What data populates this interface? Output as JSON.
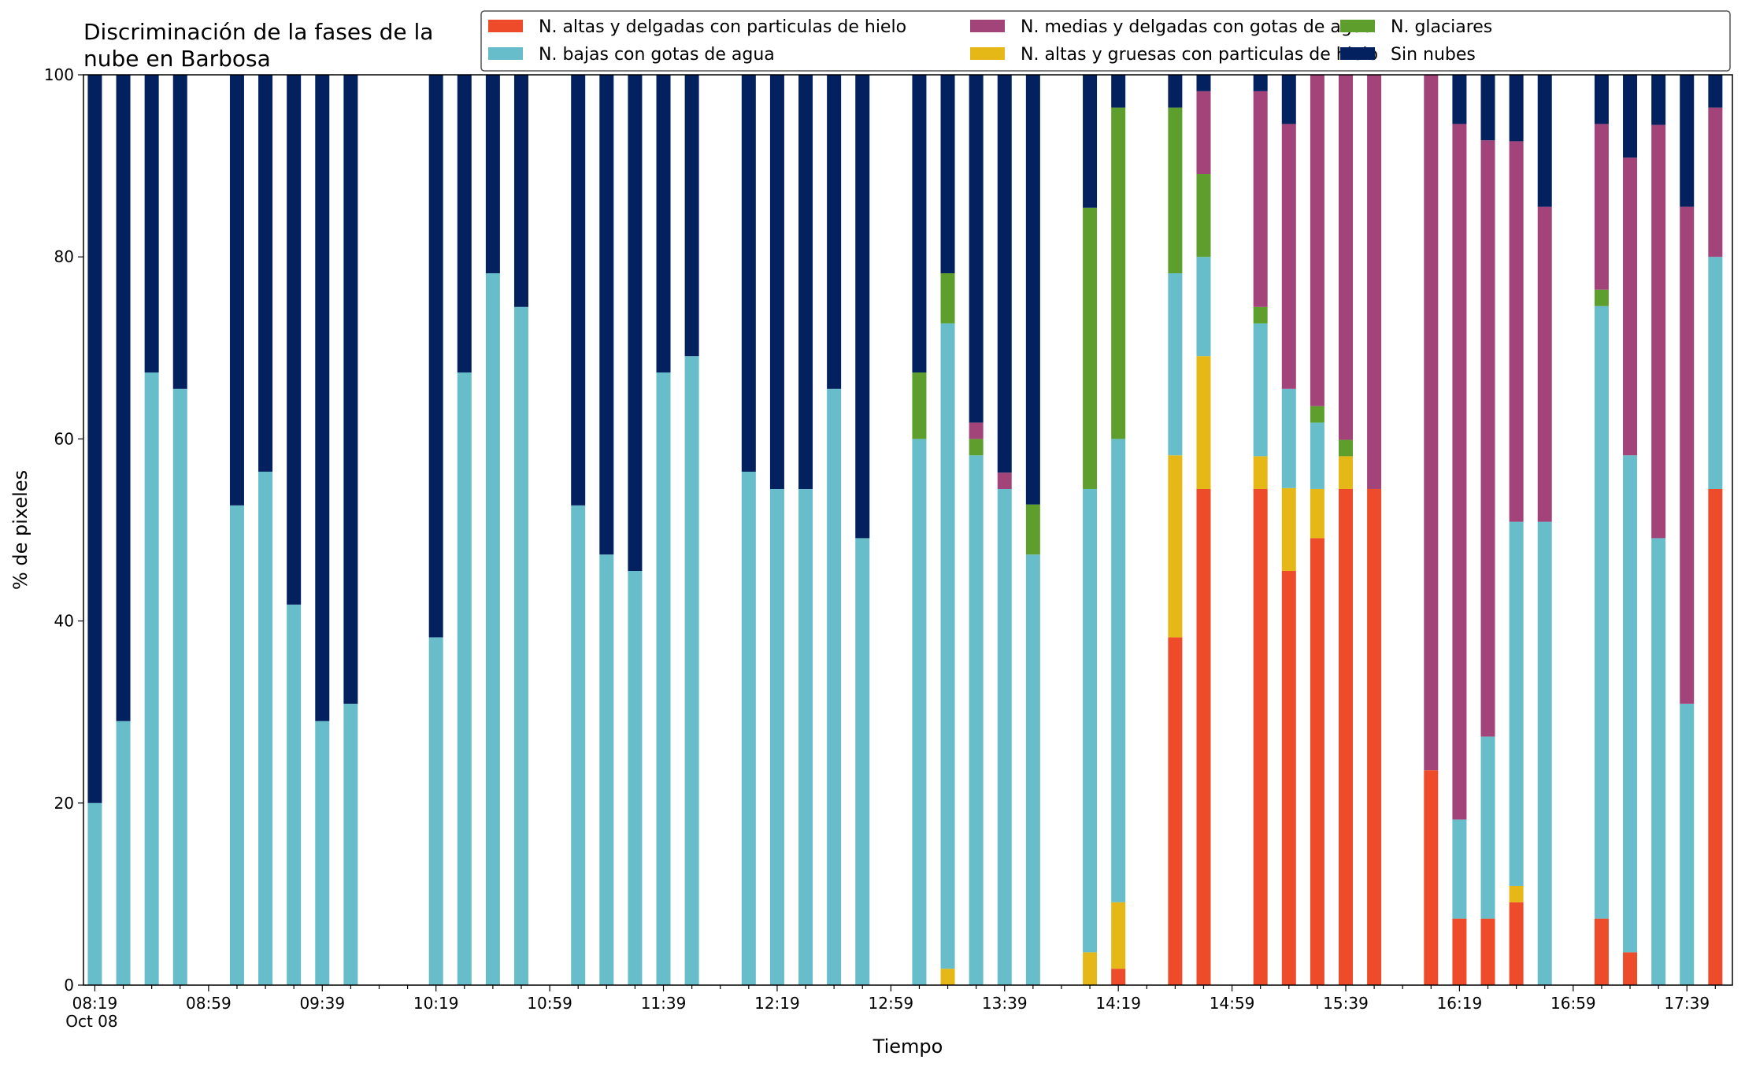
{
  "chart_data": {
    "type": "bar",
    "stacked": true,
    "title": "Discriminación de la fases de la\nnube en Barbosa",
    "xlabel": "Tiempo",
    "ylabel": "% de pixeles",
    "ylim": [
      0,
      100
    ],
    "yticks": [
      0,
      20,
      40,
      60,
      80,
      100
    ],
    "xticks": [
      {
        "time": "08:19",
        "label": "08:19",
        "sublabel": "Oct 08"
      },
      {
        "time": "08:59",
        "label": "08:59"
      },
      {
        "time": "09:39",
        "label": "09:39"
      },
      {
        "time": "10:19",
        "label": "10:19"
      },
      {
        "time": "10:59",
        "label": "10:59"
      },
      {
        "time": "11:39",
        "label": "11:39"
      },
      {
        "time": "12:19",
        "label": "12:19"
      },
      {
        "time": "12:59",
        "label": "12:59"
      },
      {
        "time": "13:39",
        "label": "13:39"
      },
      {
        "time": "14:19",
        "label": "14:19"
      },
      {
        "time": "14:59",
        "label": "14:59"
      },
      {
        "time": "15:39",
        "label": "15:39"
      },
      {
        "time": "16:19",
        "label": "16:19"
      },
      {
        "time": "16:59",
        "label": "16:59"
      },
      {
        "time": "17:39",
        "label": "17:39"
      }
    ],
    "minor_tick_interval_minutes": 10,
    "x_range": [
      "08:15",
      "17:55"
    ],
    "grid": false,
    "legend_position": "top-right",
    "series": [
      {
        "name": "N. altas y delgadas con particulas de hielo",
        "color": "#EE4B2B"
      },
      {
        "name": "N. altas y gruesas con particulas de hielo",
        "color": "#E6B817"
      },
      {
        "name": "N. bajas con gotas de agua",
        "color": "#67BDC9"
      },
      {
        "name": "N. glaciares",
        "color": "#5E9E2D"
      },
      {
        "name": "N. medias y delgadas con gotas de agua",
        "color": "#A2437A"
      },
      {
        "name": "Sin nubes",
        "color": "#03205F"
      }
    ],
    "legend_order": [
      0,
      2,
      4,
      1,
      3,
      5
    ],
    "bars": [
      {
        "time": "08:19",
        "values": [
          0,
          0,
          20,
          0,
          0,
          80
        ]
      },
      {
        "time": "08:29",
        "values": [
          0,
          0,
          29,
          0,
          0,
          71
        ]
      },
      {
        "time": "08:39",
        "values": [
          0,
          0,
          67.3,
          0,
          0,
          32.7
        ]
      },
      {
        "time": "08:49",
        "values": [
          0,
          0,
          65.5,
          0,
          0,
          34.5
        ]
      },
      {
        "time": "09:09",
        "values": [
          0,
          0,
          52.7,
          0,
          0,
          47.3
        ]
      },
      {
        "time": "09:19",
        "values": [
          0,
          0,
          56.4,
          0,
          0,
          43.6
        ]
      },
      {
        "time": "09:29",
        "values": [
          0,
          0,
          41.8,
          0,
          0,
          58.2
        ]
      },
      {
        "time": "09:39",
        "values": [
          0,
          0,
          29,
          0,
          0,
          71
        ]
      },
      {
        "time": "09:49",
        "values": [
          0,
          0,
          30.9,
          0,
          0,
          69.1
        ]
      },
      {
        "time": "10:19",
        "values": [
          0,
          0,
          38.2,
          0,
          0,
          61.8
        ]
      },
      {
        "time": "10:29",
        "values": [
          0,
          0,
          67.3,
          0,
          0,
          32.7
        ]
      },
      {
        "time": "10:39",
        "values": [
          0,
          0,
          78.2,
          0,
          0,
          21.8
        ]
      },
      {
        "time": "10:49",
        "values": [
          0,
          0,
          74.5,
          0,
          0,
          25.5
        ]
      },
      {
        "time": "11:09",
        "values": [
          0,
          0,
          52.7,
          0,
          0,
          47.3
        ]
      },
      {
        "time": "11:19",
        "values": [
          0,
          0,
          47.3,
          0,
          0,
          52.7
        ]
      },
      {
        "time": "11:29",
        "values": [
          0,
          0,
          45.5,
          0,
          0,
          54.5
        ]
      },
      {
        "time": "11:39",
        "values": [
          0,
          0,
          67.3,
          0,
          0,
          32.7
        ]
      },
      {
        "time": "11:49",
        "values": [
          0,
          0,
          69.1,
          0,
          0,
          30.9
        ]
      },
      {
        "time": "12:09",
        "values": [
          0,
          0,
          56.4,
          0,
          0,
          43.6
        ]
      },
      {
        "time": "12:19",
        "values": [
          0,
          0,
          54.5,
          0,
          0,
          45.5
        ]
      },
      {
        "time": "12:29",
        "values": [
          0,
          0,
          54.5,
          0,
          0,
          45.5
        ]
      },
      {
        "time": "12:39",
        "values": [
          0,
          0,
          65.5,
          0,
          0,
          34.5
        ]
      },
      {
        "time": "12:49",
        "values": [
          0,
          0,
          49.1,
          0,
          0,
          50.9
        ]
      },
      {
        "time": "13:09",
        "values": [
          0,
          0,
          60,
          7.3,
          0,
          32.7
        ]
      },
      {
        "time": "13:19",
        "values": [
          0,
          1.8,
          70.9,
          5.5,
          0,
          21.8
        ]
      },
      {
        "time": "13:29",
        "values": [
          0,
          0,
          58.2,
          1.8,
          1.8,
          38.2
        ]
      },
      {
        "time": "13:39",
        "values": [
          0,
          0,
          54.5,
          0,
          1.8,
          43.7
        ]
      },
      {
        "time": "13:49",
        "values": [
          0,
          0,
          47.3,
          5.5,
          0,
          47.2
        ]
      },
      {
        "time": "14:09",
        "values": [
          0,
          3.6,
          50.9,
          30.9,
          0,
          14.6
        ]
      },
      {
        "time": "14:19",
        "values": [
          1.8,
          7.3,
          50.9,
          36.4,
          0,
          3.6
        ]
      },
      {
        "time": "14:39",
        "values": [
          38.2,
          20,
          20,
          18.2,
          0,
          3.6
        ]
      },
      {
        "time": "14:49",
        "values": [
          54.5,
          14.6,
          10.9,
          9.1,
          9.1,
          1.8
        ]
      },
      {
        "time": "15:09",
        "values": [
          54.5,
          3.6,
          14.6,
          1.8,
          23.7,
          1.8
        ]
      },
      {
        "time": "15:19",
        "values": [
          45.5,
          9.1,
          10.9,
          0,
          29.1,
          5.4
        ]
      },
      {
        "time": "15:29",
        "values": [
          49.1,
          5.4,
          7.3,
          1.8,
          36.4,
          0
        ]
      },
      {
        "time": "15:39",
        "values": [
          54.5,
          3.6,
          0,
          1.8,
          40.1,
          0
        ]
      },
      {
        "time": "15:49",
        "values": [
          54.5,
          0,
          0,
          0,
          45.5,
          0
        ]
      },
      {
        "time": "16:09",
        "values": [
          23.6,
          0,
          0,
          0,
          76.4,
          0
        ]
      },
      {
        "time": "16:19",
        "values": [
          7.3,
          0,
          10.9,
          0,
          76.4,
          5.4
        ]
      },
      {
        "time": "16:29",
        "values": [
          7.3,
          0,
          20,
          0,
          65.5,
          7.2
        ]
      },
      {
        "time": "16:39",
        "values": [
          9.1,
          1.8,
          40,
          0,
          41.8,
          7.3
        ]
      },
      {
        "time": "16:49",
        "values": [
          0,
          0,
          50.9,
          0,
          34.6,
          14.5
        ]
      },
      {
        "time": "17:09",
        "values": [
          7.3,
          0,
          67.3,
          1.8,
          18.2,
          5.4
        ]
      },
      {
        "time": "17:19",
        "values": [
          3.6,
          0,
          54.6,
          0,
          32.7,
          9.1
        ]
      },
      {
        "time": "17:29",
        "values": [
          0,
          0,
          49.1,
          0,
          45.4,
          5.5
        ]
      },
      {
        "time": "17:39",
        "values": [
          0,
          0,
          30.9,
          0,
          54.6,
          14.5
        ]
      },
      {
        "time": "17:49",
        "values": [
          54.5,
          0,
          25.5,
          0,
          16.4,
          3.6
        ]
      }
    ]
  }
}
